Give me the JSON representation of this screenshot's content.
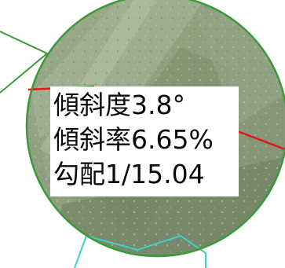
{
  "annotation": {
    "slope_degree": "傾斜度3.8°",
    "slope_percent": "傾斜率6.65%",
    "gradient_ratio": "勾配1/15.04"
  },
  "colors": {
    "circle_border": "#3a9a3a",
    "leader_line": "#3a9a3a",
    "measurement_line": "#e01818",
    "parcel_outline": "#40d0c8",
    "label_background": "#ffffff",
    "label_text": "#0a0a0a",
    "aerial_base": "#8a9a80"
  }
}
